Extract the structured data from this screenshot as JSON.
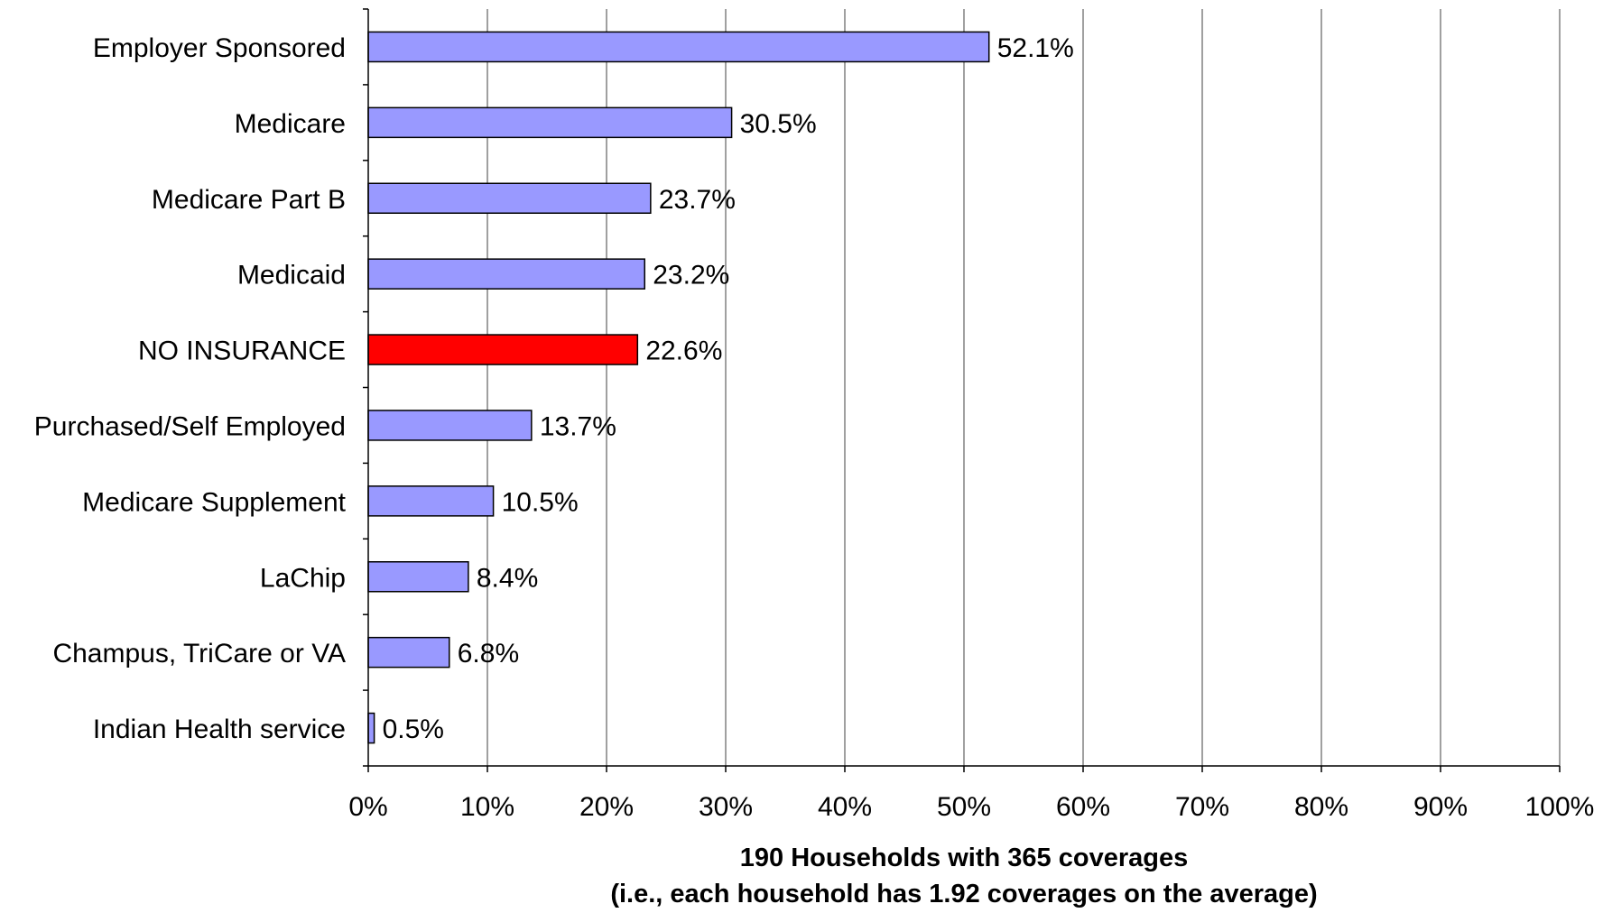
{
  "chart_data": {
    "type": "bar",
    "orientation": "horizontal",
    "categories": [
      "Employer Sponsored",
      "Medicare",
      "Medicare Part B",
      "Medicaid",
      "NO INSURANCE",
      "Purchased/Self Employed",
      "Medicare Supplement",
      "LaChip",
      "Champus, TriCare or VA",
      "Indian Health service"
    ],
    "values": [
      52.1,
      30.5,
      23.7,
      23.2,
      22.6,
      13.7,
      10.5,
      8.4,
      6.8,
      0.5
    ],
    "value_labels": [
      "52.1%",
      "30.5%",
      "23.7%",
      "23.2%",
      "22.6%",
      "13.7%",
      "10.5%",
      "8.4%",
      "6.8%",
      "0.5%"
    ],
    "xlabel_lines": [
      "190 Households with 365 coverages",
      "(i.e., each household has 1.92 coverages on the average)"
    ],
    "xlim": [
      0,
      100
    ],
    "x_ticks": [
      0,
      10,
      20,
      30,
      40,
      50,
      60,
      70,
      80,
      90,
      100
    ],
    "x_tick_labels": [
      "0%",
      "10%",
      "20%",
      "30%",
      "40%",
      "50%",
      "60%",
      "70%",
      "80%",
      "90%",
      "100%"
    ],
    "grid": "vertical",
    "colors": {
      "bar": "#9999ff",
      "highlight": "#ff0000",
      "bar_edge": "#000000",
      "grid": "#808080"
    },
    "highlight_category": "NO INSURANCE"
  }
}
